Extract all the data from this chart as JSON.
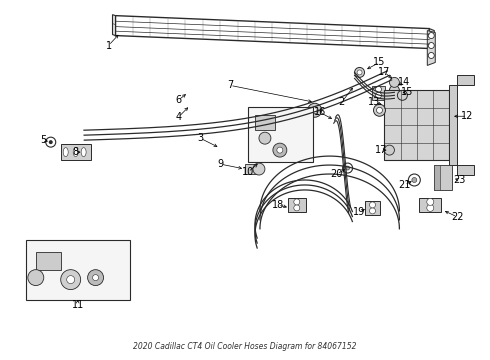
{
  "bg_color": "#ffffff",
  "line_color": "#2a2a2a",
  "lw_thin": 0.7,
  "lw_med": 1.0,
  "lw_thick": 1.5,
  "label_fontsize": 7.0,
  "caption": "2020 Cadillac CT4 Oil Cooler Hoses Diagram for 84067152"
}
